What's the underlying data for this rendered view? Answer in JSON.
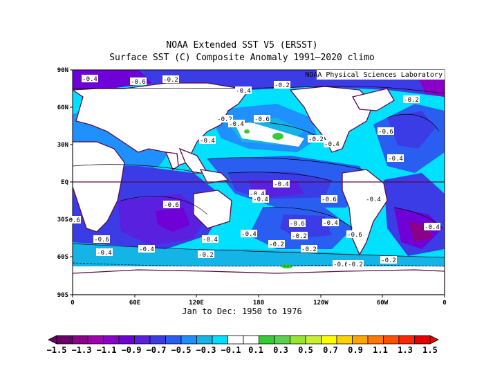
{
  "title": "NOAA Extended SST V5 (ERSST)",
  "subtitle": "Surface SST (C) Composite Anomaly 1991–2020 climo",
  "credit": "NOAA Physical Sciences Laboratory",
  "period": "Jan to Dec: 1950 to 1976",
  "lat_ticks": [
    "90N",
    "60N",
    "30N",
    "EQ",
    "30S",
    "60S",
    "90S"
  ],
  "lon_ticks": [
    "0",
    "60E",
    "120E",
    "180",
    "120W",
    "60W",
    "0"
  ],
  "contour_labels": [
    "-0.4",
    "-0.6",
    "-0.2",
    "-0.2",
    "-0.4",
    "-0.2",
    "-0.2",
    "-0.6",
    "-0.4",
    "-0.4",
    "-0.2",
    "-0.6",
    "-0.4",
    "-0.4",
    "-0.6",
    "-0.4",
    "-0.4",
    "-0.6",
    "-0.4",
    "-0.6",
    "-0.6",
    "-0.4",
    "-0.2",
    "-0.6",
    "-0.4",
    "-0.4",
    "-0.4",
    "-0.2",
    "-0.2",
    "-0.2",
    "-0.6",
    "-0.2",
    "-0.6",
    "-0.4",
    "-0.2",
    "-0.4",
    "-0.4"
  ],
  "colorbar": {
    "labels": [
      "−1.5",
      "−1.3",
      "−1.1",
      "−0.9",
      "−0.7",
      "−0.5",
      "−0.3",
      "−0.1",
      "0.1",
      "0.3",
      "0.5",
      "0.7",
      "0.9",
      "1.1",
      "1.3",
      "1.5"
    ],
    "colors": [
      "#6b006b",
      "#8a008a",
      "#a000b0",
      "#8a00c8",
      "#7000d8",
      "#5a20e0",
      "#3c3ce6",
      "#2a5ef0",
      "#1e90ff",
      "#14b4e6",
      "#00e0ff",
      "#ffffff",
      "#ffffff",
      "#32cd32",
      "#5ad250",
      "#96e632",
      "#c8f032",
      "#ffff00",
      "#ffd200",
      "#ffa500",
      "#ff7800",
      "#ff5000",
      "#ff2800",
      "#e60000"
    ]
  },
  "colors": {
    "land": "#ffffff",
    "coast": "#5a0a46",
    "contour": "#000000",
    "equator": "#5a0a46"
  }
}
